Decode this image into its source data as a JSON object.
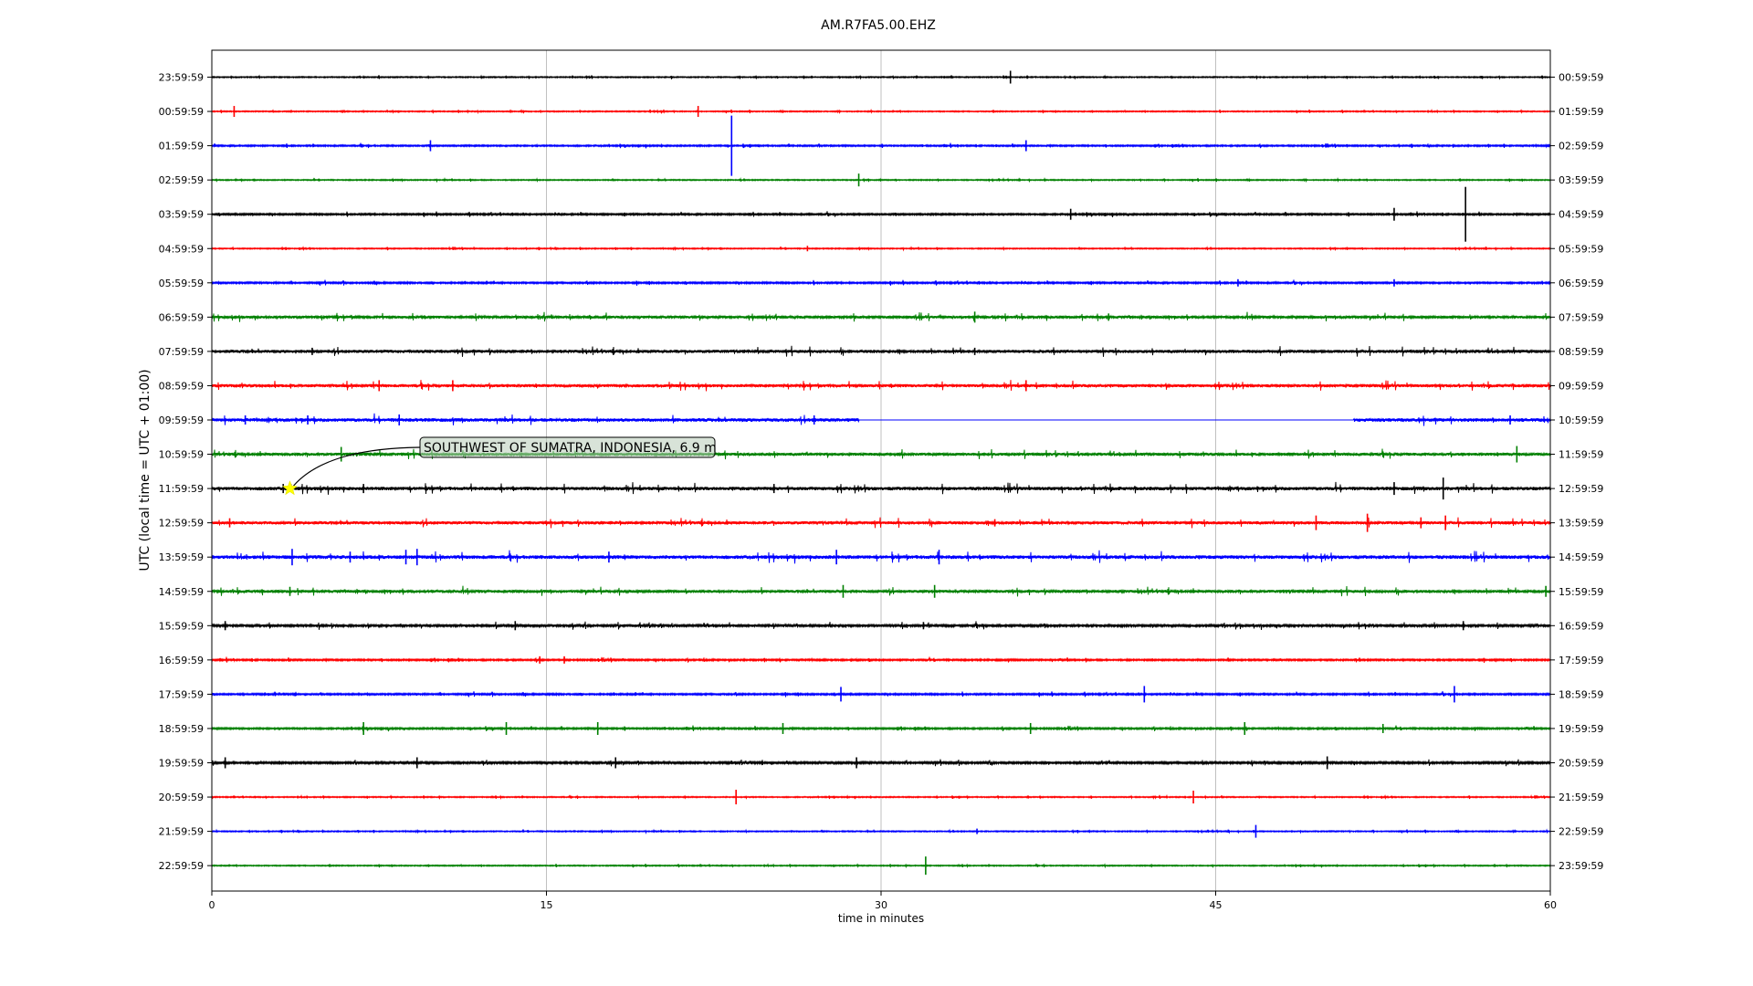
{
  "chart_data": {
    "type": "line",
    "title": "AM.R7FA5.00.EHZ",
    "xlabel": "time in minutes",
    "ylabel": "UTC (local time = UTC + 01:00)",
    "xlim": [
      0,
      60
    ],
    "x_ticks": [
      0,
      15,
      30,
      45,
      60
    ],
    "grid": "vertical",
    "colors_cycle": [
      "#000000",
      "#ff0000",
      "#0000ff",
      "#008000"
    ],
    "left_labels": [
      "23:59:59",
      "00:59:59",
      "01:59:59",
      "02:59:59",
      "03:59:59",
      "04:59:59",
      "05:59:59",
      "06:59:59",
      "07:59:59",
      "08:59:59",
      "09:59:59",
      "10:59:59",
      "11:59:59",
      "12:59:59",
      "13:59:59",
      "14:59:59",
      "15:59:59",
      "16:59:59",
      "17:59:59",
      "18:59:59",
      "19:59:59",
      "20:59:59",
      "21:59:59",
      "22:59:59"
    ],
    "right_labels": [
      "00:59:59",
      "01:59:59",
      "02:59:59",
      "03:59:59",
      "04:59:59",
      "05:59:59",
      "06:59:59",
      "07:59:59",
      "08:59:59",
      "09:59:59",
      "10:59:59",
      "11:59:59",
      "12:59:59",
      "13:59:59",
      "14:59:59",
      "15:59:59",
      "16:59:59",
      "17:59:59",
      "18:59:59",
      "19:59:59",
      "20:59:59",
      "21:59:59",
      "22:59:59",
      "23:59:59"
    ],
    "noise_level": [
      0.6,
      0.6,
      0.8,
      0.6,
      0.9,
      0.6,
      0.9,
      1.5,
      1.7,
      1.7,
      1.9,
      1.6,
      1.9,
      1.7,
      2.0,
      1.6,
      1.3,
      0.9,
      0.9,
      0.9,
      1.1,
      0.6,
      0.6,
      0.6
    ],
    "spikes": [
      [
        [
          35.8,
          7
        ]
      ],
      [
        [
          1.0,
          6
        ],
        [
          21.8,
          6
        ]
      ],
      [
        [
          9.8,
          6
        ],
        [
          23.3,
          33
        ],
        [
          36.5,
          6
        ]
      ],
      [
        [
          29.0,
          7
        ]
      ],
      [
        [
          38.5,
          6
        ],
        [
          53.0,
          7
        ],
        [
          56.2,
          30
        ]
      ],
      [
        [
          26.7,
          3
        ]
      ],
      [
        [
          46.0,
          4
        ],
        [
          53.0,
          4
        ]
      ],
      [
        [
          34.2,
          6
        ],
        [
          40.2,
          4
        ]
      ],
      [
        [
          4.5,
          4
        ],
        [
          34.2,
          4
        ]
      ],
      [
        [
          7.5,
          6
        ],
        [
          10.8,
          6
        ],
        [
          36.5,
          6
        ]
      ],
      [
        [
          1.5,
          5
        ],
        [
          4.3,
          5
        ],
        [
          8.4,
          6
        ],
        [
          27.0,
          5
        ],
        [
          58.2,
          5
        ]
      ],
      [
        [
          5.8,
          8
        ],
        [
          58.5,
          9
        ]
      ],
      [
        [
          3.2,
          5
        ],
        [
          6.8,
          5
        ],
        [
          25.2,
          5
        ],
        [
          53.0,
          7
        ],
        [
          55.2,
          12
        ]
      ],
      [
        [
          0.8,
          5
        ],
        [
          35.1,
          4
        ],
        [
          49.5,
          8
        ],
        [
          51.8,
          10
        ],
        [
          54.2,
          6
        ],
        [
          55.3,
          8
        ]
      ],
      [
        [
          3.6,
          9
        ],
        [
          6.2,
          6
        ],
        [
          8.7,
          8
        ],
        [
          9.2,
          9
        ],
        [
          17.8,
          6
        ],
        [
          28.0,
          8
        ],
        [
          32.6,
          8
        ]
      ],
      [
        [
          3.5,
          5
        ],
        [
          28.3,
          7
        ],
        [
          32.4,
          7
        ],
        [
          59.8,
          6
        ]
      ],
      [
        [
          0.6,
          5
        ],
        [
          13.6,
          5
        ],
        [
          31.9,
          4
        ],
        [
          56.1,
          5
        ]
      ],
      [
        [
          14.7,
          4
        ],
        [
          15.8,
          4
        ]
      ],
      [
        [
          28.2,
          8
        ],
        [
          41.8,
          9
        ],
        [
          55.7,
          9
        ]
      ],
      [
        [
          6.8,
          7
        ],
        [
          13.2,
          7
        ],
        [
          17.3,
          7
        ],
        [
          25.6,
          6
        ],
        [
          36.7,
          6
        ],
        [
          46.3,
          7
        ],
        [
          52.5,
          5
        ]
      ],
      [
        [
          0.6,
          6
        ],
        [
          9.2,
          6
        ],
        [
          18.1,
          6
        ],
        [
          28.9,
          6
        ],
        [
          50.0,
          7
        ]
      ],
      [
        [
          23.5,
          8
        ],
        [
          44.0,
          7
        ]
      ],
      [
        [
          34.3,
          3
        ],
        [
          46.8,
          7
        ]
      ],
      [
        [
          32.0,
          10
        ]
      ]
    ],
    "gaps": [
      null,
      null,
      null,
      null,
      null,
      null,
      null,
      null,
      null,
      null,
      [
        29.0,
        51.2
      ],
      null,
      null,
      null,
      null,
      null,
      null,
      null,
      null,
      null,
      null,
      null,
      null,
      null
    ],
    "event": {
      "label": "SOUTHWEST OF SUMATRA, INDONESIA, 6.9 m",
      "time_minutes": 3.5,
      "row": 12,
      "marker_color": "#ffff00",
      "box_color": "#b8ccb8"
    }
  }
}
